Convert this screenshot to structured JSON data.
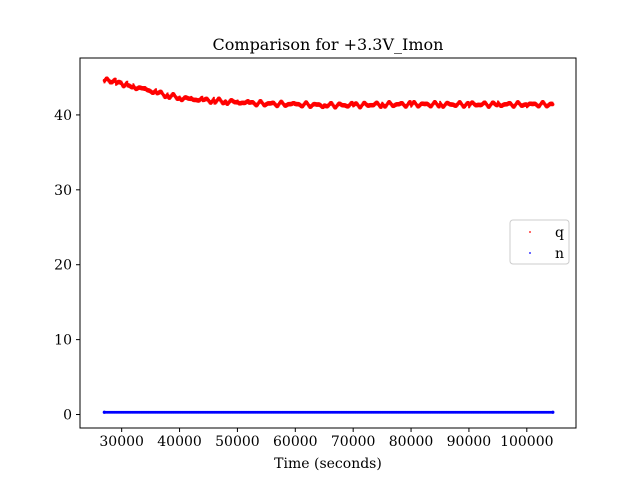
{
  "chart_data": {
    "type": "scatter",
    "title": "Comparison for +3.3V_Imon",
    "xlabel": "Time (seconds)",
    "ylabel": "",
    "xlim": [
      22800,
      108500
    ],
    "ylim": [
      -1.8,
      47.6
    ],
    "xticks": [
      30000,
      40000,
      50000,
      60000,
      70000,
      80000,
      90000,
      100000
    ],
    "yticks": [
      0,
      10,
      20,
      30,
      40
    ],
    "grid": false,
    "legend_position": "center-right",
    "series": [
      {
        "name": "q",
        "color": "#ff0000",
        "x": [
          27000,
          28000,
          29000,
          30000,
          31000,
          32000,
          34000,
          36000,
          38000,
          40000,
          42000,
          44000,
          46000,
          48000,
          50000,
          52000,
          55000,
          60000,
          65000,
          70000,
          75000,
          80000,
          85000,
          90000,
          95000,
          100000,
          104500
        ],
        "y": [
          44.6,
          44.5,
          44.4,
          44.2,
          44.0,
          43.8,
          43.4,
          43.0,
          42.6,
          42.3,
          42.1,
          42.0,
          41.9,
          41.8,
          41.7,
          41.6,
          41.5,
          41.4,
          41.3,
          41.3,
          41.4,
          41.4,
          41.4,
          41.4,
          41.4,
          41.4,
          41.4
        ]
      },
      {
        "name": "n",
        "color": "#0000ff",
        "x": [
          27000,
          104500
        ],
        "y": [
          0.3,
          0.3
        ]
      }
    ]
  }
}
